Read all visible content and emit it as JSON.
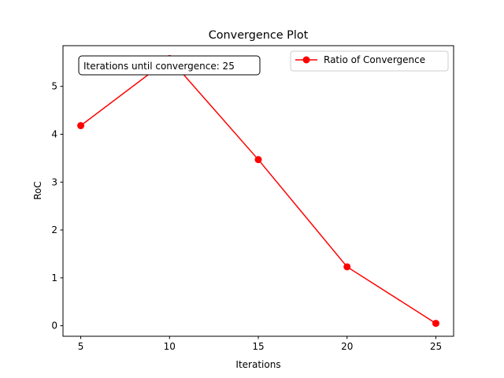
{
  "chart_data": {
    "type": "line",
    "title": "Convergence Plot",
    "xlabel": "Iterations",
    "ylabel": "RoC",
    "x": [
      5,
      10,
      15,
      20,
      25
    ],
    "series": [
      {
        "name": "Ratio of Convergence",
        "values": [
          4.18,
          5.58,
          3.47,
          1.23,
          0.05
        ],
        "color": "#ff0000",
        "marker": "circle"
      }
    ],
    "xticks": [
      5,
      10,
      15,
      20,
      25
    ],
    "yticks": [
      0,
      1,
      2,
      3,
      4,
      5
    ],
    "xlim": [
      4,
      26
    ],
    "ylim": [
      -0.22,
      5.85
    ],
    "grid": false,
    "legend_position": "top-right",
    "annotation": "Iterations until convergence: 25"
  }
}
